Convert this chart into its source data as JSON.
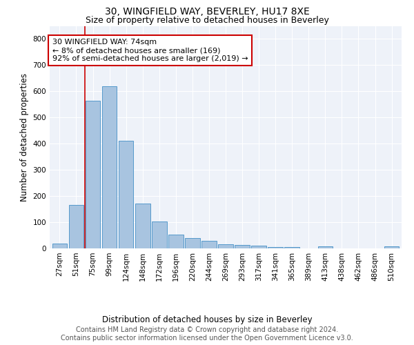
{
  "title": "30, WINGFIELD WAY, BEVERLEY, HU17 8XE",
  "subtitle": "Size of property relative to detached houses in Beverley",
  "xlabel": "Distribution of detached houses by size in Beverley",
  "ylabel": "Number of detached properties",
  "footer_line1": "Contains HM Land Registry data © Crown copyright and database right 2024.",
  "footer_line2": "Contains public sector information licensed under the Open Government Licence v3.0.",
  "bar_labels": [
    "27sqm",
    "51sqm",
    "75sqm",
    "99sqm",
    "124sqm",
    "148sqm",
    "172sqm",
    "196sqm",
    "220sqm",
    "244sqm",
    "269sqm",
    "293sqm",
    "317sqm",
    "341sqm",
    "365sqm",
    "389sqm",
    "413sqm",
    "438sqm",
    "462sqm",
    "486sqm",
    "510sqm"
  ],
  "bar_values": [
    18,
    165,
    565,
    620,
    410,
    172,
    103,
    52,
    40,
    30,
    15,
    14,
    10,
    5,
    5,
    0,
    8,
    0,
    0,
    0,
    7
  ],
  "bar_color": "#a8c4e0",
  "bar_edge_color": "#5599cc",
  "annotation_line_color": "#cc0000",
  "annotation_box_text_line1": "30 WINGFIELD WAY: 74sqm",
  "annotation_box_text_line2": "← 8% of detached houses are smaller (169)",
  "annotation_box_text_line3": "92% of semi-detached houses are larger (2,019) →",
  "annotation_box_color": "#cc0000",
  "ylim": [
    0,
    850
  ],
  "yticks": [
    0,
    100,
    200,
    300,
    400,
    500,
    600,
    700,
    800
  ],
  "background_color": "#eef2f9",
  "grid_color": "#ffffff",
  "title_fontsize": 10,
  "subtitle_fontsize": 9,
  "xlabel_fontsize": 8.5,
  "ylabel_fontsize": 8.5,
  "tick_fontsize": 7.5,
  "annotation_fontsize": 8,
  "footer_fontsize": 7
}
